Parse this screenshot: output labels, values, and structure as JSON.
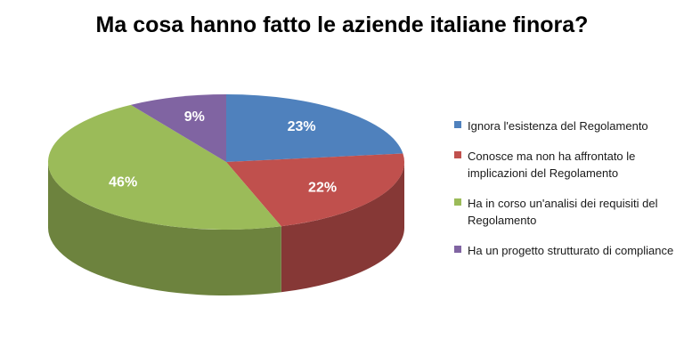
{
  "chart_data": {
    "type": "pie",
    "title": "Ma cosa hanno fatto le aziende italiane finora?",
    "labels": [
      "Ignora l'esistenza del Regolamento",
      "Conosce ma non ha affrontato le implicazioni del Regolamento",
      "Ha in corso un'analisi dei requisiti del Regolamento",
      "Ha un progetto strutturato di compliance"
    ],
    "values": [
      23,
      22,
      46,
      9
    ],
    "data_labels": [
      "23%",
      "22%",
      "46%",
      "9%"
    ],
    "colors": [
      "#4F81BD",
      "#C0504D",
      "#9BBB59",
      "#8064A2"
    ],
    "three_d": true,
    "legend_position": "right"
  }
}
